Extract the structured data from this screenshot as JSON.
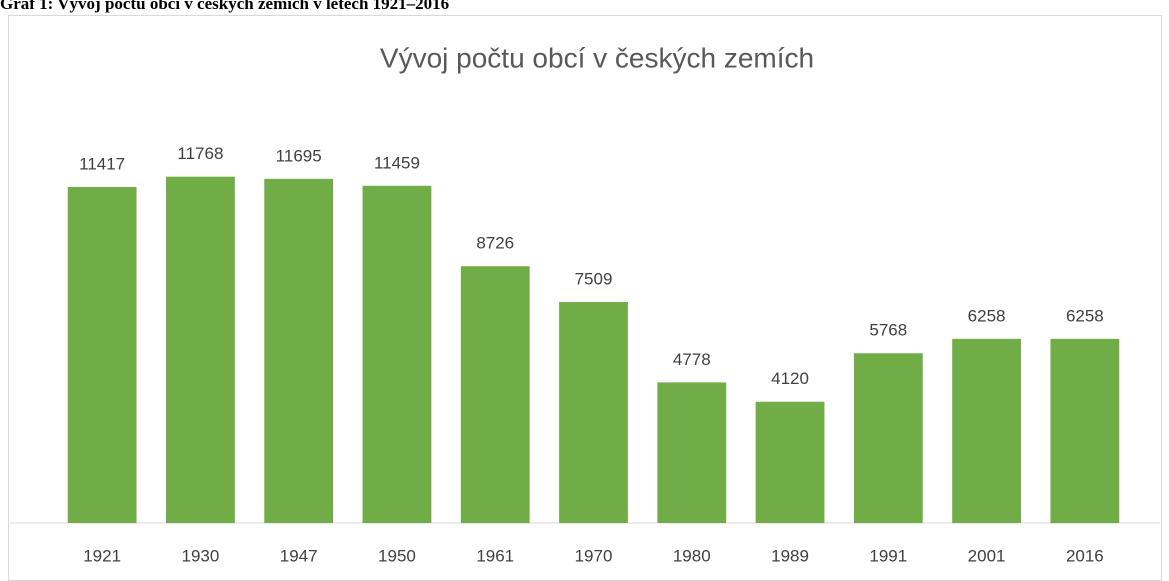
{
  "caption": "Graf 1: Vývoj počtu obcí v českých zemích v letech 1921–2016",
  "chart_data": {
    "type": "bar",
    "title": "Vývoj počtu obcí v českých zemích",
    "categories": [
      "1921",
      "1930",
      "1947",
      "1950",
      "1961",
      "1970",
      "1980",
      "1989",
      "1991",
      "2001",
      "2016"
    ],
    "values": [
      11417,
      11768,
      11695,
      11459,
      8726,
      7509,
      4778,
      4120,
      5768,
      6258,
      6258
    ],
    "color": "#70ad47",
    "ylim": [
      0,
      14000
    ]
  }
}
